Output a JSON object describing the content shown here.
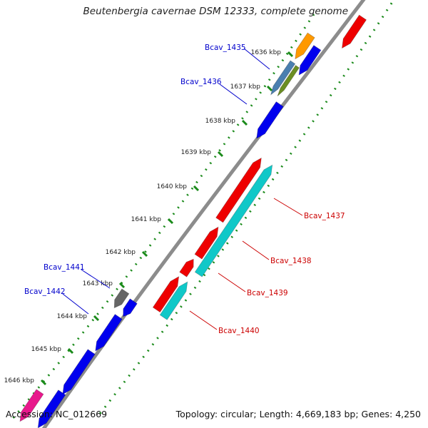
{
  "title": "Beutenbergia cavernae DSM 12333, complete genome",
  "footer": {
    "accession": "Accession: NC_012669",
    "summary": "Topology: circular; Length: 4,669,183 bp; Genes: 4,250"
  },
  "ticks": [
    {
      "label": "1636 kbp"
    },
    {
      "label": "1637 kbp"
    },
    {
      "label": "1638 kbp"
    },
    {
      "label": "1639 kbp"
    },
    {
      "label": "1640 kbp"
    },
    {
      "label": "1641 kbp"
    },
    {
      "label": "1642 kbp"
    },
    {
      "label": "1643 kbp"
    },
    {
      "label": "1644 kbp"
    },
    {
      "label": "1645 kbp"
    },
    {
      "label": "1646 kbp"
    }
  ],
  "gene_labels": [
    {
      "name": "Bcav_1435",
      "color": "#0000cc"
    },
    {
      "name": "Bcav_1436",
      "color": "#0000cc"
    },
    {
      "name": "Bcav_1437",
      "color": "#cc0000"
    },
    {
      "name": "Bcav_1438",
      "color": "#cc0000"
    },
    {
      "name": "Bcav_1439",
      "color": "#cc0000"
    },
    {
      "name": "Bcav_1440",
      "color": "#cc0000"
    },
    {
      "name": "Bcav_1441",
      "color": "#0000cc"
    },
    {
      "name": "Bcav_1442",
      "color": "#0000cc"
    }
  ],
  "colors": {
    "forward": "#0000ee",
    "reverse": "#ee0000",
    "cyan": "#10c8c8",
    "orange": "#ff9900",
    "steel": "#4a7fb0",
    "olive": "#6b8e23",
    "gray": "#666666",
    "magenta": "#e8188c",
    "backbone": "#888888",
    "dots": "#1a8a1a"
  }
}
